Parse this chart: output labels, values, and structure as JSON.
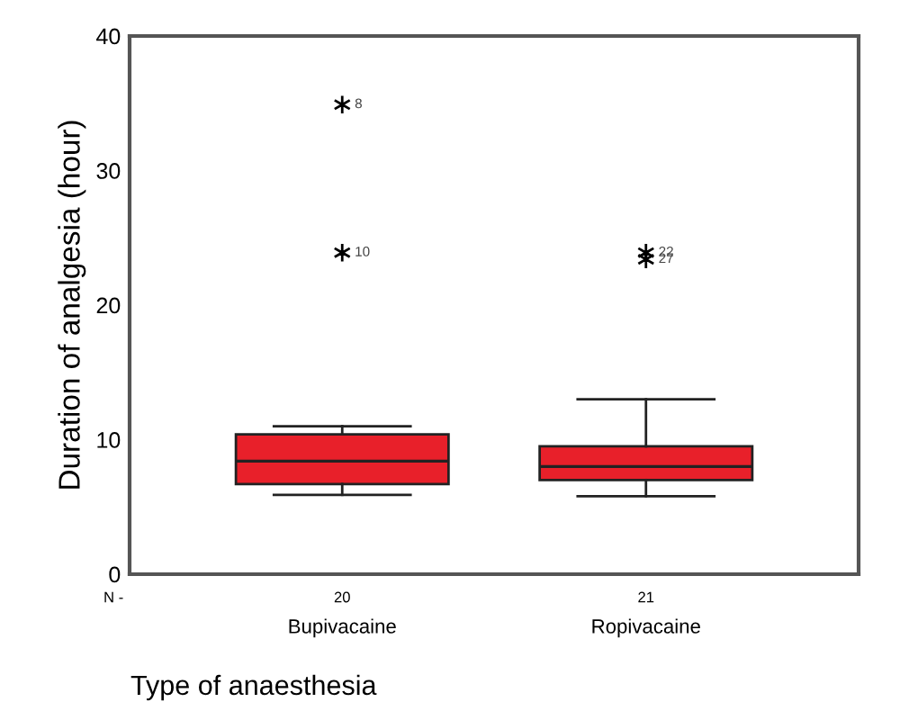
{
  "chart_data": {
    "type": "box",
    "ylabel": "Duration of analgesia (hour)",
    "xlabel": "Type of anaesthesia",
    "categories": [
      "Bupivacaine",
      "Ropivacaine"
    ],
    "series": [
      {
        "color": "#e8202a",
        "boxes": [
          {
            "low": 5.9,
            "q1": 6.7,
            "median": 8.4,
            "q3": 10.4,
            "high": 11.0,
            "outliers": [
              34.9,
              23.9
            ]
          },
          {
            "low": 5.8,
            "q1": 7.0,
            "median": 8.0,
            "q3": 9.5,
            "high": 13.0,
            "outliers": [
              23.9,
              23.4
            ]
          }
        ]
      }
    ],
    "ylim": [
      0,
      40
    ],
    "yticks": [
      0,
      10,
      20,
      30,
      40
    ],
    "grid": false,
    "marker": "star",
    "annotations": [
      "8",
      "10",
      "22",
      "27",
      "N -",
      "20",
      "21"
    ]
  }
}
